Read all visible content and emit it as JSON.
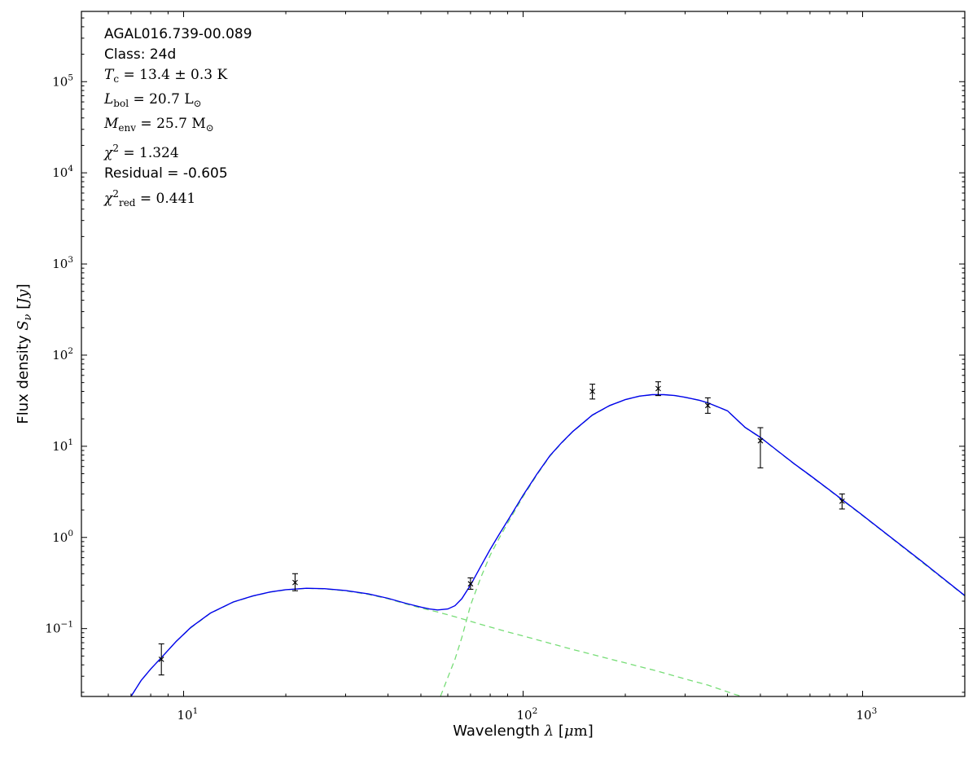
{
  "figure": {
    "background": "#ffffff",
    "frame_color": "#000000",
    "text_color": "#000000"
  },
  "annotation": {
    "lines": [
      {
        "name": "source-name",
        "segments": [
          {
            "t": "AGAL016.739-00.089",
            "sans": true
          }
        ]
      },
      {
        "name": "source-class",
        "segments": [
          {
            "t": "Class: 24d",
            "sans": true
          }
        ]
      },
      {
        "name": "dust-temperature",
        "segments": [
          {
            "t": "T",
            "serif": true,
            "italic": true
          },
          {
            "t": "c",
            "serif": true,
            "sub": true
          },
          {
            "t": " = 13.4 ± 0.3 K",
            "serif": true
          }
        ]
      },
      {
        "name": "bolometric-luminosity",
        "segments": [
          {
            "t": "L",
            "serif": true,
            "italic": true
          },
          {
            "t": "bol",
            "serif": true,
            "sub": true
          },
          {
            "t": " = 20.7 L",
            "serif": true
          },
          {
            "t": "⊙",
            "serif": true,
            "sub": true
          }
        ]
      },
      {
        "name": "envelope-mass",
        "segments": [
          {
            "t": "M",
            "serif": true,
            "italic": true
          },
          {
            "t": "env",
            "serif": true,
            "sub": true
          },
          {
            "t": " = 25.7 M",
            "serif": true
          },
          {
            "t": "⊙",
            "serif": true,
            "sub": true
          }
        ]
      },
      {
        "name": "chi-squared",
        "segments": [
          {
            "t": "χ",
            "serif": true,
            "italic": true
          },
          {
            "t": "2",
            "serif": true,
            "sup": true
          },
          {
            "t": " = 1.324",
            "serif": true
          }
        ]
      },
      {
        "name": "residual",
        "segments": [
          {
            "t": "Residual = -0.605",
            "sans": true
          }
        ]
      },
      {
        "name": "chi-squared-reduced",
        "segments": [
          {
            "t": "χ",
            "serif": true,
            "italic": true
          },
          {
            "t": "2",
            "serif": true,
            "sup": true
          },
          {
            "t": "red",
            "serif": true,
            "sub": true
          },
          {
            "t": " = 0.441",
            "serif": true
          }
        ]
      }
    ]
  },
  "chart_data": {
    "type": "line",
    "title": "",
    "grid": false,
    "legend": "none",
    "xlabel_segments": [
      {
        "t": "Wavelength ",
        "sans": true
      },
      {
        "t": "λ",
        "serif": true,
        "italic": true
      },
      {
        "t": " [",
        "sans": true
      },
      {
        "t": "μ",
        "serif": true,
        "italic": true
      },
      {
        "t": "m",
        "serif": true
      },
      {
        "t": "]",
        "sans": true
      }
    ],
    "ylabel_segments": [
      {
        "t": "Flux density ",
        "sans": true
      },
      {
        "t": "S",
        "serif": true,
        "italic": true
      },
      {
        "t": "ν",
        "serif": true,
        "italic": true,
        "sub": true
      },
      {
        "t": " [",
        "sans": true
      },
      {
        "t": "Jy",
        "serif": true,
        "italic": true
      },
      {
        "t": "]",
        "sans": true
      }
    ],
    "x_axis": {
      "scale": "log",
      "min": 5,
      "max": 2000,
      "major_ticks": [
        10,
        100,
        1000
      ],
      "major_tick_labels": [
        {
          "base": "10",
          "exp": "1"
        },
        {
          "base": "10",
          "exp": "2"
        },
        {
          "base": "10",
          "exp": "3"
        }
      ]
    },
    "y_axis": {
      "scale": "log",
      "min": 0.018,
      "max": 590000,
      "major_ticks": [
        0.1,
        1,
        10,
        100,
        1000,
        10000,
        100000
      ],
      "major_tick_labels": [
        {
          "base": "10",
          "exp": "−1"
        },
        {
          "base": "10",
          "exp": "0"
        },
        {
          "base": "10",
          "exp": "1"
        },
        {
          "base": "10",
          "exp": "2"
        },
        {
          "base": "10",
          "exp": "3"
        },
        {
          "base": "10",
          "exp": "4"
        },
        {
          "base": "10",
          "exp": "5"
        }
      ]
    },
    "colors": {
      "total_model": "#0000ee",
      "components": "#77dd77",
      "data_points": "#000000"
    },
    "series": [
      {
        "name": "warm-component",
        "style": "dashed",
        "points": [
          [
            6.5,
            0.013
          ],
          [
            7,
            0.018
          ],
          [
            7.5,
            0.027
          ],
          [
            8,
            0.036
          ],
          [
            8.6,
            0.048
          ],
          [
            9.5,
            0.072
          ],
          [
            10.5,
            0.102
          ],
          [
            12,
            0.147
          ],
          [
            14,
            0.195
          ],
          [
            16,
            0.227
          ],
          [
            18,
            0.251
          ],
          [
            20,
            0.266
          ],
          [
            23,
            0.276
          ],
          [
            26,
            0.272
          ],
          [
            30,
            0.259
          ],
          [
            35,
            0.237
          ],
          [
            40,
            0.212
          ],
          [
            45,
            0.187
          ],
          [
            50,
            0.168
          ],
          [
            56,
            0.152
          ],
          [
            63,
            0.135
          ],
          [
            70,
            0.12
          ],
          [
            80,
            0.104
          ],
          [
            90,
            0.092
          ],
          [
            100,
            0.083
          ],
          [
            120,
            0.069
          ],
          [
            140,
            0.059
          ],
          [
            170,
            0.049
          ],
          [
            200,
            0.042
          ],
          [
            250,
            0.034
          ],
          [
            300,
            0.028
          ],
          [
            350,
            0.024
          ],
          [
            420,
            0.019
          ],
          [
            470,
            0.017
          ]
        ]
      },
      {
        "name": "cold-component",
        "style": "dashed",
        "points": [
          [
            50,
            0.0045
          ],
          [
            53,
            0.0085
          ],
          [
            56,
            0.015
          ],
          [
            58,
            0.021
          ],
          [
            60,
            0.029
          ],
          [
            63,
            0.046
          ],
          [
            66,
            0.08
          ],
          [
            70,
            0.18
          ],
          [
            75,
            0.36
          ],
          [
            80,
            0.64
          ],
          [
            85,
            0.98
          ],
          [
            90,
            1.43
          ],
          [
            100,
            2.8
          ],
          [
            110,
            4.9
          ],
          [
            120,
            7.8
          ],
          [
            130,
            10.9
          ],
          [
            140,
            14.4
          ],
          [
            160,
            21.9
          ],
          [
            180,
            27.9
          ],
          [
            200,
            32.4
          ],
          [
            220,
            35.4
          ],
          [
            240,
            36.7
          ],
          [
            260,
            36.7
          ],
          [
            280,
            35.9
          ],
          [
            300,
            34.4
          ],
          [
            330,
            31.9
          ],
          [
            350,
            29.9
          ],
          [
            400,
            24.4
          ],
          [
            450,
            16.1
          ],
          [
            500,
            12.4
          ],
          [
            560,
            8.95
          ],
          [
            630,
            6.35
          ],
          [
            700,
            4.75
          ],
          [
            800,
            3.27
          ],
          [
            870,
            2.57
          ],
          [
            1000,
            1.73
          ],
          [
            1200,
            1.02
          ],
          [
            1500,
            0.53
          ],
          [
            2000,
            0.228
          ]
        ]
      },
      {
        "name": "total-model",
        "style": "solid",
        "points": [
          [
            7,
            0.018
          ],
          [
            7.5,
            0.027
          ],
          [
            8,
            0.036
          ],
          [
            8.6,
            0.048
          ],
          [
            9.5,
            0.072
          ],
          [
            10.5,
            0.103
          ],
          [
            12,
            0.148
          ],
          [
            14,
            0.196
          ],
          [
            16,
            0.228
          ],
          [
            18,
            0.252
          ],
          [
            20,
            0.267
          ],
          [
            23,
            0.277
          ],
          [
            26,
            0.274
          ],
          [
            30,
            0.262
          ],
          [
            35,
            0.24
          ],
          [
            40,
            0.215
          ],
          [
            45,
            0.19
          ],
          [
            50,
            0.172
          ],
          [
            53,
            0.164
          ],
          [
            56,
            0.16
          ],
          [
            60,
            0.164
          ],
          [
            63,
            0.178
          ],
          [
            66,
            0.213
          ],
          [
            70,
            0.3
          ],
          [
            75,
            0.48
          ],
          [
            80,
            0.74
          ],
          [
            85,
            1.08
          ],
          [
            90,
            1.52
          ],
          [
            100,
            2.9
          ],
          [
            110,
            5.0
          ],
          [
            120,
            7.9
          ],
          [
            130,
            11.0
          ],
          [
            140,
            14.5
          ],
          [
            160,
            22
          ],
          [
            180,
            28
          ],
          [
            200,
            32.5
          ],
          [
            220,
            35.5
          ],
          [
            240,
            36.8
          ],
          [
            260,
            36.8
          ],
          [
            280,
            36
          ],
          [
            300,
            34.5
          ],
          [
            330,
            32
          ],
          [
            350,
            30
          ],
          [
            400,
            24.5
          ],
          [
            450,
            16.2
          ],
          [
            500,
            12.5
          ],
          [
            560,
            9.0
          ],
          [
            630,
            6.4
          ],
          [
            700,
            4.8
          ],
          [
            800,
            3.3
          ],
          [
            870,
            2.6
          ],
          [
            1000,
            1.75
          ],
          [
            1200,
            1.03
          ],
          [
            1500,
            0.54
          ],
          [
            2000,
            0.23
          ]
        ]
      }
    ],
    "data_points": [
      {
        "wavelength_um": 8.6,
        "flux_jy": 0.046,
        "err_lo": 0.031,
        "err_hi": 0.068
      },
      {
        "wavelength_um": 21.3,
        "flux_jy": 0.32,
        "err_lo": 0.26,
        "err_hi": 0.4
      },
      {
        "wavelength_um": 70,
        "flux_jy": 0.31,
        "err_lo": 0.27,
        "err_hi": 0.36
      },
      {
        "wavelength_um": 160,
        "flux_jy": 40,
        "err_lo": 33,
        "err_hi": 48
      },
      {
        "wavelength_um": 250,
        "flux_jy": 43,
        "err_lo": 36,
        "err_hi": 51
      },
      {
        "wavelength_um": 350,
        "flux_jy": 28,
        "err_lo": 23,
        "err_hi": 34
      },
      {
        "wavelength_um": 500,
        "flux_jy": 11.5,
        "err_lo": 5.8,
        "err_hi": 16
      },
      {
        "wavelength_um": 870,
        "flux_jy": 2.5,
        "err_lo": 2.05,
        "err_hi": 3.0
      }
    ]
  }
}
